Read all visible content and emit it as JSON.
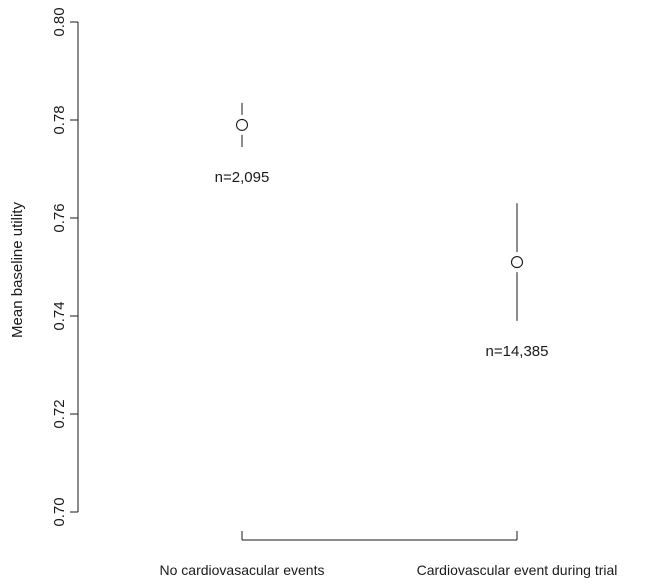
{
  "chart_data": {
    "type": "scatter",
    "title": "",
    "xlabel": "",
    "ylabel": "Mean baseline utility",
    "ylim": [
      0.7,
      0.8
    ],
    "yticks": [
      "0.70",
      "0.72",
      "0.74",
      "0.76",
      "0.78",
      "0.80"
    ],
    "grid": false,
    "categories": [
      "No cardiovasacular events",
      "Cardiovascular event during trial"
    ],
    "points": [
      {
        "category": "No cardiovasacular events",
        "mean": 0.779,
        "ci_lower": 0.7745,
        "ci_upper": 0.7835,
        "label": "n=2,095"
      },
      {
        "category": "Cardiovascular event during trial",
        "mean": 0.751,
        "ci_lower": 0.739,
        "ci_upper": 0.763,
        "label": "n=14,385"
      }
    ]
  }
}
